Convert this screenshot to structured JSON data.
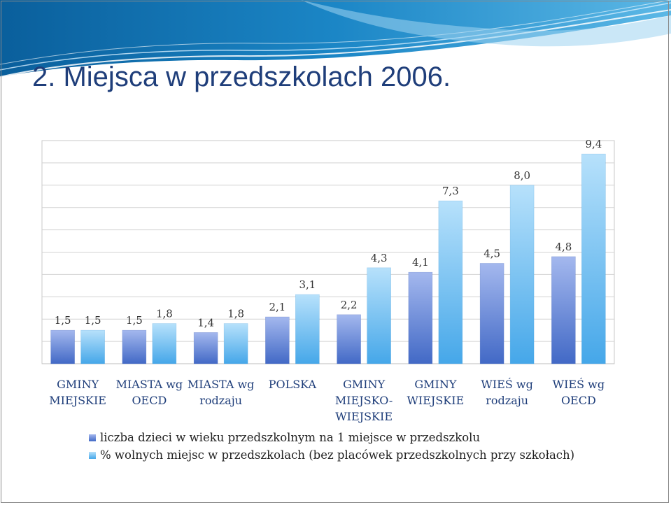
{
  "slide": {
    "title": "2. Miejsca w przedszkolach 2006."
  },
  "colors": {
    "series_dark_top": "#a4b8ee",
    "series_dark_bottom": "#4269c6",
    "series_light_top": "#b7e1fb",
    "series_light_bottom": "#45a7e9",
    "title": "#1f3e7a",
    "category_text": "#1f3e7a",
    "banner_dark": "#0e6fae",
    "banner_light": "#9fd3f0"
  },
  "chart_data": {
    "type": "bar",
    "title": "",
    "xlabel": "",
    "ylabel": "",
    "ylim": [
      0,
      10
    ],
    "grid": true,
    "legend_position": "bottom",
    "categories": [
      [
        "GMINY",
        "MIEJSKIE"
      ],
      [
        "MIASTA wg",
        "OECD"
      ],
      [
        "MIASTA wg",
        "rodzaju"
      ],
      [
        "POLSKA"
      ],
      [
        "GMINY",
        "MIEJSKO-",
        "WIEJSKIE"
      ],
      [
        "GMINY",
        "WIEJSKIE"
      ],
      [
        "WIEŚ wg",
        "rodzaju"
      ],
      [
        "WIEŚ wg",
        "OECD"
      ]
    ],
    "series": [
      {
        "name": "liczba dzieci w wieku przedszkolnym na 1 miejsce w przedszkolu",
        "values": [
          1.5,
          1.5,
          1.4,
          2.1,
          2.2,
          4.1,
          4.5,
          4.8
        ],
        "labels": [
          "1,5",
          "1,5",
          "1,4",
          "2,1",
          "2,2",
          "4,1",
          "4,5",
          "4,8"
        ]
      },
      {
        "name": "% wolnych miejsc w przedszkolach (bez placówek  przedszkolnych przy szkołach)",
        "values": [
          1.5,
          1.8,
          1.8,
          3.1,
          4.3,
          7.3,
          8.0,
          9.4
        ],
        "labels": [
          "1,5",
          "1,8",
          "1,8",
          "3,1",
          "4,3",
          "7,3",
          "8,0",
          "9,4"
        ]
      }
    ]
  }
}
